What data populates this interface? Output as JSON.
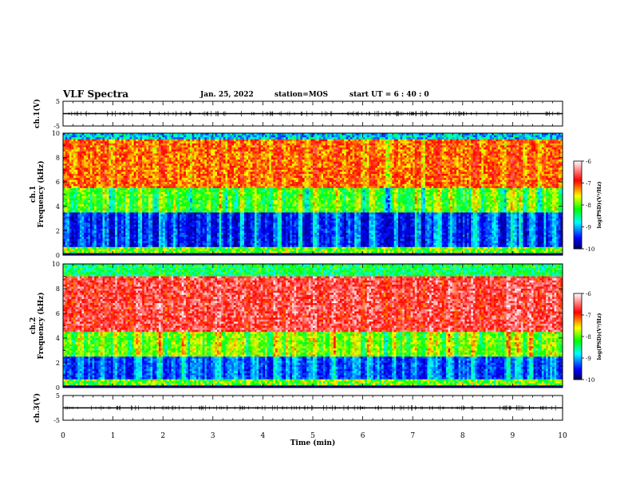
{
  "header": {
    "title": "VLF Spectra",
    "date": "Jan. 25, 2022",
    "station": "station=MOS",
    "start_ut": "start UT =  6 : 40 : 0"
  },
  "chart_data": [
    {
      "id": "ch1_waveform",
      "type": "line",
      "ylabel": "ch.1(V)",
      "ylim": [
        -5,
        5
      ],
      "y_ticks": [
        "5",
        "-5"
      ],
      "xlim": [
        0,
        10
      ],
      "series": [
        {
          "x": [
            0,
            10
          ],
          "values": [
            0,
            0
          ]
        }
      ]
    },
    {
      "id": "ch1_spectrogram",
      "type": "heatmap",
      "ylabel": "ch.1\nFrequency (kHz)",
      "ylim": [
        0,
        10
      ],
      "y_ticks": [
        "0",
        "2",
        "4",
        "6",
        "8",
        "10"
      ],
      "xlim": [
        0,
        10
      ],
      "colorbar": {
        "label": "log(PSD)(V²/Hz)",
        "range": [
          -10,
          -6
        ],
        "ticks": [
          "-6",
          "-7",
          "-8",
          "-9",
          "-10"
        ]
      },
      "colormap": [
        "#00005a",
        "#0000ff",
        "#00ffff",
        "#00ff00",
        "#ffff00",
        "#ff0000",
        "#ffffff"
      ]
    },
    {
      "id": "ch2_spectrogram",
      "type": "heatmap",
      "ylabel": "ch.2\nFrequency (kHz)",
      "ylim": [
        0,
        10
      ],
      "y_ticks": [
        "0",
        "2",
        "4",
        "6",
        "8",
        "10"
      ],
      "xlim": [
        0,
        10
      ],
      "colorbar": {
        "label": "log(PSD)(V²/Hz)",
        "range": [
          -10,
          -6
        ],
        "ticks": [
          "-6",
          "-7",
          "-8",
          "-9",
          "-10"
        ]
      },
      "colormap": [
        "#00005a",
        "#0000ff",
        "#00ffff",
        "#00ff00",
        "#ffff00",
        "#ff0000",
        "#ffffff"
      ]
    },
    {
      "id": "ch3_waveform",
      "type": "line",
      "ylabel": "ch.3(V)",
      "ylim": [
        -5,
        5
      ],
      "y_ticks": [
        "5",
        "-5"
      ],
      "xlim": [
        0,
        10
      ],
      "series": [
        {
          "x": [
            0,
            10
          ],
          "values": [
            0,
            0
          ]
        }
      ]
    }
  ],
  "x_axis": {
    "label": "Time (min)",
    "ticks": [
      "0",
      "1",
      "2",
      "3",
      "4",
      "5",
      "6",
      "7",
      "8",
      "9",
      "10"
    ]
  }
}
